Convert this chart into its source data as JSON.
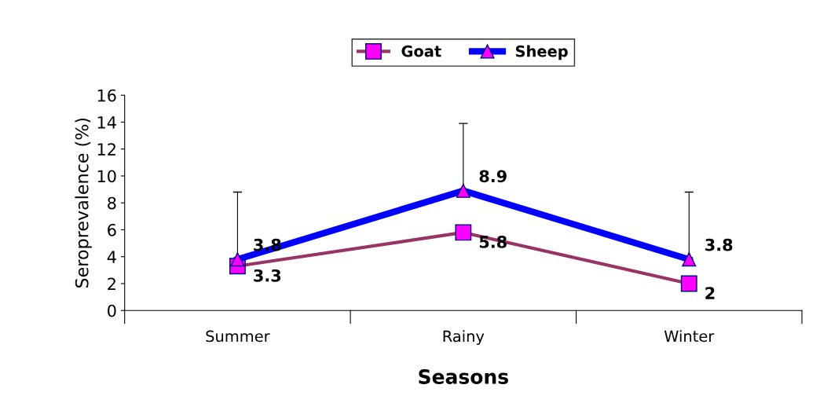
{
  "chart_data": {
    "type": "line",
    "xlabel": "Seasons",
    "ylabel": "Seroprevalence (%)",
    "categories": [
      "Summer",
      "Rainy",
      "Winter"
    ],
    "series": [
      {
        "name": "Goat",
        "color": "#993366",
        "values": [
          3.3,
          5.8,
          2
        ],
        "marker": "square"
      },
      {
        "name": "Sheep",
        "color": "#0000ff",
        "values": [
          3.8,
          8.9,
          3.8
        ],
        "marker": "triangle",
        "errors": [
          [
            3.8,
            8.8
          ],
          [
            8.9,
            13.9
          ],
          [
            3.8,
            8.8
          ]
        ]
      }
    ],
    "ylim": [
      0,
      16
    ],
    "yticks": [
      0,
      2,
      4,
      6,
      8,
      10,
      12,
      14,
      16
    ],
    "grid": false,
    "legend": "top",
    "data_labels": true
  }
}
